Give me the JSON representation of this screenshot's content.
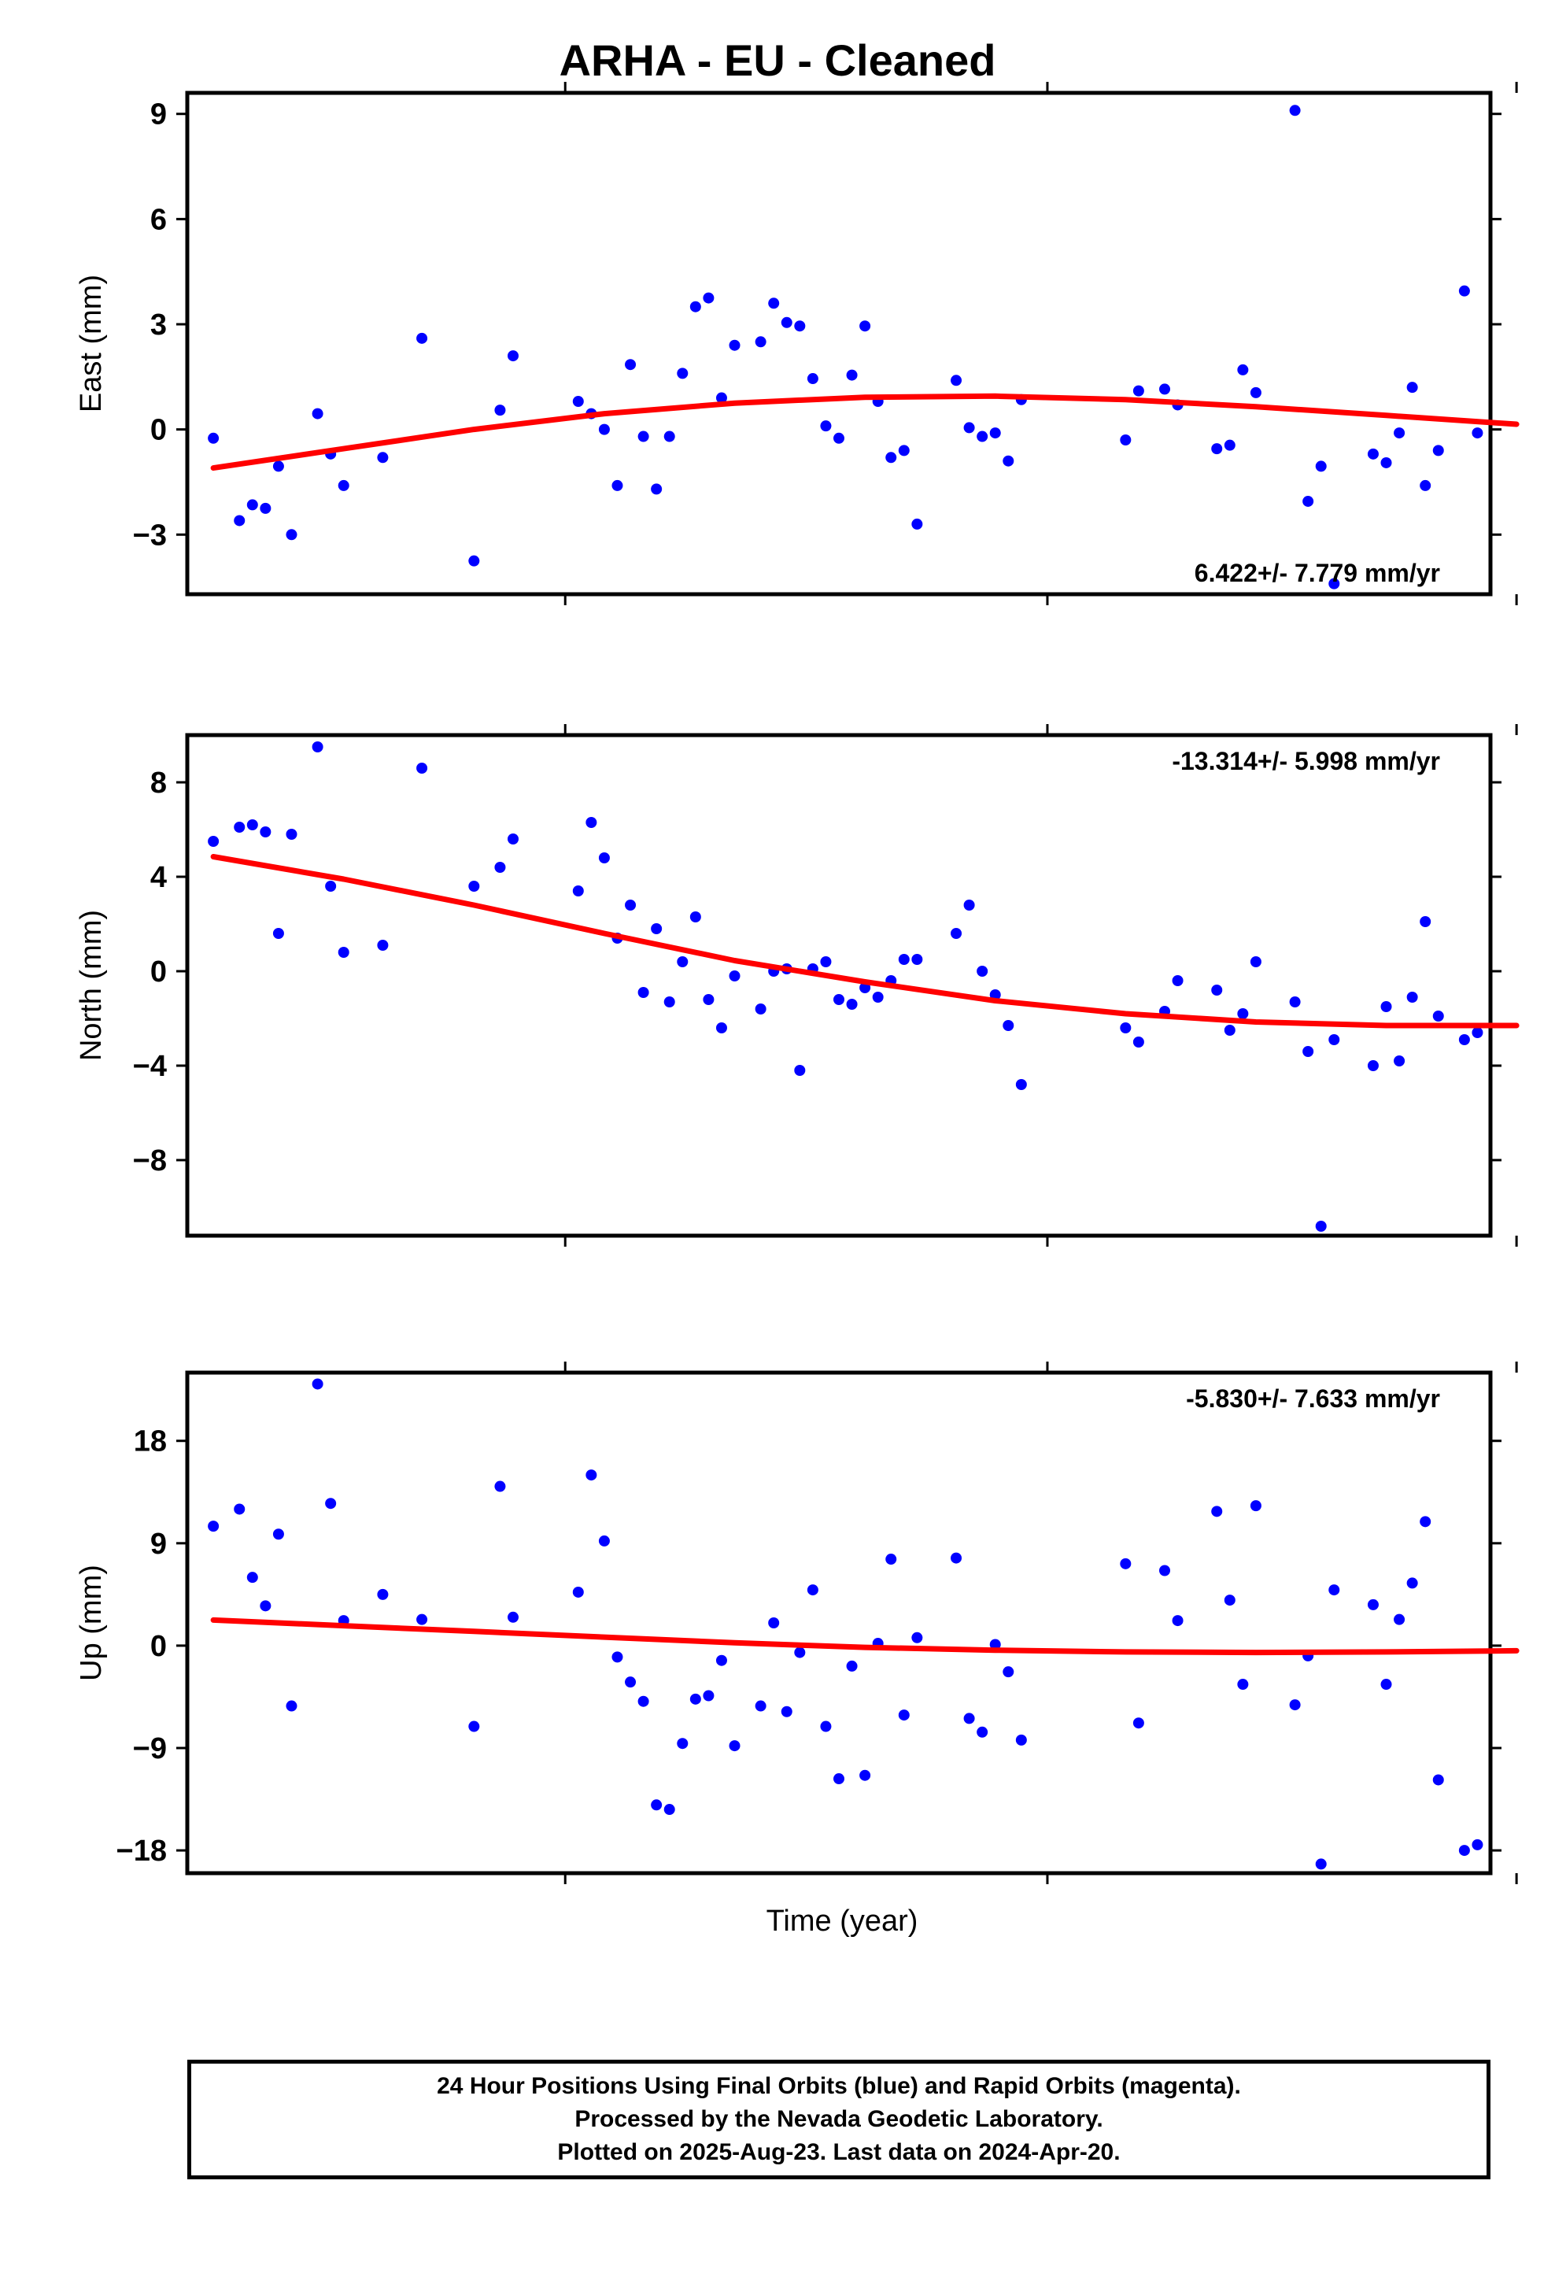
{
  "title": "ARHA  - EU - Cleaned",
  "xlabel": "Time (year)",
  "footer": {
    "line1": "24 Hour Positions Using Final Orbits (blue) and Rapid Orbits (magenta).",
    "line2": "Processed by the Nevada Geodetic Laboratory.",
    "line3": "Plotted on 2025-Aug-23. Last data on 2024-Apr-20."
  },
  "colors": {
    "points": "#0000ff",
    "fit": "#ff0000"
  },
  "chart_data": [
    {
      "type": "scatter",
      "ylabel": "East (mm)",
      "ylim": [
        -4.7,
        9.6
      ],
      "yticks": [
        9,
        6,
        3,
        0,
        -3
      ],
      "yticklabels": [
        "9",
        "6",
        "3",
        "0",
        "−3"
      ],
      "rate": "6.422+/- 7.779 mm/yr",
      "xticks": [
        0.29,
        0.66,
        1.02
      ],
      "x": [
        0.02,
        0.04,
        0.05,
        0.06,
        0.07,
        0.08,
        0.1,
        0.11,
        0.12,
        0.15,
        0.18,
        0.22,
        0.24,
        0.25,
        0.3,
        0.31,
        0.32,
        0.33,
        0.34,
        0.35,
        0.36,
        0.37,
        0.38,
        0.39,
        0.4,
        0.41,
        0.42,
        0.44,
        0.45,
        0.46,
        0.47,
        0.48,
        0.49,
        0.5,
        0.51,
        0.52,
        0.53,
        0.54,
        0.55,
        0.56,
        0.59,
        0.6,
        0.61,
        0.62,
        0.63,
        0.64,
        0.72,
        0.73,
        0.75,
        0.76,
        0.79,
        0.8,
        0.81,
        0.82,
        0.85,
        0.86,
        0.87,
        0.88,
        0.91,
        0.92,
        0.93,
        0.94,
        0.95,
        0.96,
        0.98,
        0.99
      ],
      "y": [
        -0.25,
        -2.6,
        -2.15,
        -2.25,
        -1.05,
        -3.0,
        0.45,
        -0.7,
        -1.6,
        -0.8,
        2.6,
        -3.75,
        0.55,
        2.1,
        0.8,
        0.45,
        0.0,
        -1.6,
        1.85,
        -0.2,
        -1.7,
        -0.2,
        1.6,
        3.5,
        3.75,
        0.9,
        2.4,
        2.5,
        3.6,
        3.05,
        2.95,
        1.45,
        0.1,
        -0.25,
        1.55,
        2.95,
        0.8,
        -0.8,
        -0.6,
        -2.7,
        1.4,
        0.05,
        -0.2,
        -0.1,
        -0.9,
        0.85,
        -0.3,
        1.1,
        1.15,
        0.7,
        -0.55,
        -0.45,
        1.7,
        1.05,
        9.1,
        -2.05,
        -1.05,
        -4.4,
        -0.7,
        -0.95,
        -0.1,
        1.2,
        -1.6,
        -0.6,
        3.95,
        -0.1
      ],
      "fit_x": [
        0.02,
        0.12,
        0.22,
        0.32,
        0.42,
        0.52,
        0.62,
        0.72,
        0.82,
        0.92,
        1.02
      ],
      "fit_y": [
        -1.1,
        -0.55,
        0.0,
        0.45,
        0.75,
        0.92,
        0.95,
        0.85,
        0.65,
        0.4,
        0.15
      ]
    },
    {
      "type": "scatter",
      "ylabel": "North (mm)",
      "ylim": [
        -11.2,
        10.0
      ],
      "yticks": [
        8,
        4,
        0,
        -4,
        -8
      ],
      "yticklabels": [
        "8",
        "4",
        "0",
        "−4",
        "−8"
      ],
      "rate": "-13.314+/- 5.998 mm/yr",
      "xticks": [
        0.29,
        0.66,
        1.02
      ],
      "x": [
        0.02,
        0.04,
        0.05,
        0.06,
        0.07,
        0.08,
        0.1,
        0.11,
        0.12,
        0.15,
        0.18,
        0.22,
        0.24,
        0.25,
        0.3,
        0.31,
        0.32,
        0.33,
        0.34,
        0.35,
        0.36,
        0.37,
        0.38,
        0.39,
        0.4,
        0.41,
        0.42,
        0.44,
        0.45,
        0.46,
        0.47,
        0.48,
        0.49,
        0.5,
        0.51,
        0.52,
        0.53,
        0.54,
        0.55,
        0.56,
        0.59,
        0.6,
        0.61,
        0.62,
        0.63,
        0.64,
        0.72,
        0.73,
        0.75,
        0.76,
        0.79,
        0.8,
        0.81,
        0.82,
        0.85,
        0.86,
        0.87,
        0.88,
        0.91,
        0.92,
        0.93,
        0.94,
        0.95,
        0.96,
        0.98,
        0.99
      ],
      "y": [
        5.5,
        6.1,
        6.2,
        5.9,
        1.6,
        5.8,
        9.5,
        3.6,
        0.8,
        1.1,
        8.6,
        3.6,
        4.4,
        5.6,
        3.4,
        6.3,
        4.8,
        1.4,
        2.8,
        -0.9,
        1.8,
        -1.3,
        0.4,
        2.3,
        -1.2,
        -2.4,
        -0.2,
        -1.6,
        0.0,
        0.1,
        -4.2,
        0.1,
        0.4,
        -1.2,
        -1.4,
        -0.7,
        -1.1,
        -0.4,
        0.5,
        0.5,
        1.6,
        2.8,
        0.0,
        -1.0,
        -2.3,
        -4.8,
        -2.4,
        -3.0,
        -1.7,
        -0.4,
        -0.8,
        -2.5,
        -1.8,
        0.4,
        -1.3,
        -3.4,
        -10.8,
        -2.9,
        -4.0,
        -1.5,
        -3.8,
        -1.1,
        2.1,
        -1.9,
        -2.9,
        -2.6
      ],
      "fit_x": [
        0.02,
        0.12,
        0.22,
        0.32,
        0.42,
        0.52,
        0.62,
        0.72,
        0.82,
        0.92,
        1.02
      ],
      "fit_y": [
        4.85,
        3.9,
        2.8,
        1.6,
        0.45,
        -0.45,
        -1.25,
        -1.8,
        -2.15,
        -2.3,
        -2.3
      ]
    },
    {
      "type": "scatter",
      "ylabel": "Up (mm)",
      "ylim": [
        -20,
        24
      ],
      "yticks": [
        18,
        9,
        0,
        -9,
        -18
      ],
      "yticklabels": [
        "18",
        "9",
        "0",
        "−9",
        "−18"
      ],
      "rate": "-5.830+/- 7.633 mm/yr",
      "xticks": [
        0.29,
        0.66,
        1.02
      ],
      "x": [
        0.02,
        0.04,
        0.05,
        0.06,
        0.07,
        0.08,
        0.1,
        0.11,
        0.12,
        0.15,
        0.18,
        0.22,
        0.24,
        0.25,
        0.3,
        0.31,
        0.32,
        0.33,
        0.34,
        0.35,
        0.36,
        0.37,
        0.38,
        0.39,
        0.4,
        0.41,
        0.42,
        0.44,
        0.45,
        0.46,
        0.47,
        0.48,
        0.49,
        0.5,
        0.51,
        0.52,
        0.53,
        0.54,
        0.55,
        0.56,
        0.59,
        0.6,
        0.61,
        0.62,
        0.63,
        0.64,
        0.72,
        0.73,
        0.75,
        0.76,
        0.79,
        0.8,
        0.81,
        0.82,
        0.85,
        0.86,
        0.87,
        0.88,
        0.91,
        0.92,
        0.93,
        0.94,
        0.95,
        0.96,
        0.98,
        0.99
      ],
      "y": [
        10.5,
        12.0,
        6.0,
        3.5,
        9.8,
        -5.3,
        23.0,
        12.5,
        2.2,
        4.5,
        2.3,
        -7.1,
        14.0,
        2.5,
        4.7,
        15.0,
        9.2,
        -1.0,
        -3.2,
        -4.9,
        -14.0,
        -14.4,
        -8.6,
        -4.7,
        -4.4,
        -1.3,
        -8.8,
        -5.3,
        2.0,
        -5.8,
        -0.6,
        4.9,
        -7.1,
        -11.7,
        -1.8,
        -11.4,
        0.2,
        7.6,
        -6.1,
        0.7,
        7.7,
        -6.4,
        -7.6,
        0.1,
        -2.3,
        -8.3,
        7.2,
        -6.8,
        6.6,
        2.2,
        11.8,
        4.0,
        -3.4,
        12.3,
        -5.2,
        -0.9,
        -19.2,
        4.9,
        3.6,
        -3.4,
        2.3,
        5.5,
        10.9,
        -11.8,
        -18.0,
        -17.5
      ],
      "fit_x": [
        0.02,
        0.12,
        0.22,
        0.32,
        0.42,
        0.52,
        0.62,
        0.72,
        0.82,
        0.92,
        1.02
      ],
      "fit_y": [
        2.25,
        1.75,
        1.25,
        0.75,
        0.25,
        -0.15,
        -0.4,
        -0.55,
        -0.6,
        -0.55,
        -0.45
      ]
    }
  ]
}
